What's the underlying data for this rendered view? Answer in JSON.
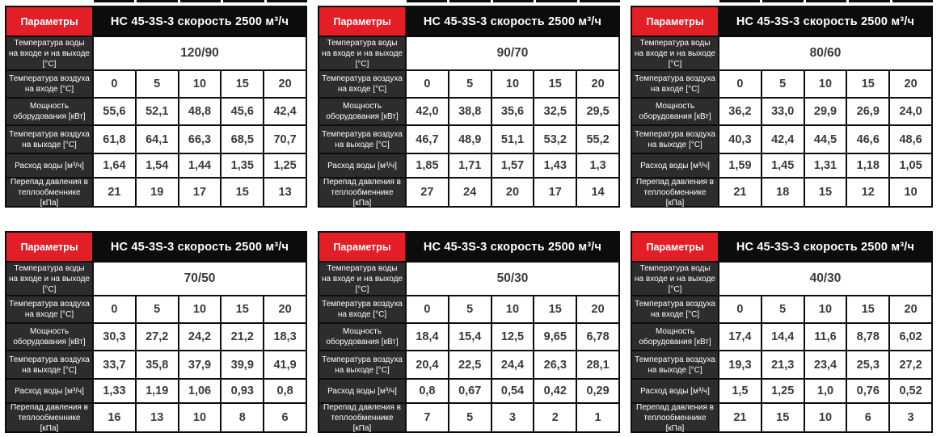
{
  "shared": {
    "params_label": "Параметры",
    "title": "НС 45-3S-3 скорость 2500 м³/ч",
    "row_labels": {
      "water_temp": "Температура воды на входе и на выходе [°C]",
      "air_in": "Температура воздуха на входе [°C]",
      "power": "Мощность оборудования [кВт]",
      "air_out": "Температура воздуха на выходе [°C]",
      "flow": "Расход воды [м³/ч]",
      "pressure": "Перепад давления в теплообменнике [кПа]"
    },
    "air_inlet_temps": [
      "0",
      "5",
      "10",
      "15",
      "20"
    ],
    "colors": {
      "accent_red": "#e31e26",
      "header_black": "#0d0c0c",
      "label_dark": "#2e2c2d",
      "value_text": "#3a3a3a"
    }
  },
  "tables": [
    {
      "water_temp": "120/90",
      "power": [
        "55,6",
        "52,1",
        "48,8",
        "45,6",
        "42,4"
      ],
      "air_out": [
        "61,8",
        "64,1",
        "66,3",
        "68,5",
        "70,7"
      ],
      "flow": [
        "1,64",
        "1,54",
        "1,44",
        "1,35",
        "1,25"
      ],
      "pressure": [
        "21",
        "19",
        "17",
        "15",
        "13"
      ]
    },
    {
      "water_temp": "90/70",
      "power": [
        "42,0",
        "38,8",
        "35,6",
        "32,5",
        "29,5"
      ],
      "air_out": [
        "46,7",
        "48,9",
        "51,1",
        "53,2",
        "55,2"
      ],
      "flow": [
        "1,85",
        "1,71",
        "1,57",
        "1,43",
        "1,3"
      ],
      "pressure": [
        "27",
        "24",
        "20",
        "17",
        "14"
      ]
    },
    {
      "water_temp": "80/60",
      "power": [
        "36,2",
        "33,0",
        "29,9",
        "26,9",
        "24,0"
      ],
      "air_out": [
        "40,3",
        "42,4",
        "44,5",
        "46,6",
        "48,6"
      ],
      "flow": [
        "1,59",
        "1,45",
        "1,31",
        "1,18",
        "1,05"
      ],
      "pressure": [
        "21",
        "18",
        "15",
        "12",
        "10"
      ]
    },
    {
      "water_temp": "70/50",
      "power": [
        "30,3",
        "27,2",
        "24,2",
        "21,2",
        "18,3"
      ],
      "air_out": [
        "33,7",
        "35,8",
        "37,9",
        "39,9",
        "41,9"
      ],
      "flow": [
        "1,33",
        "1,19",
        "1,06",
        "0,93",
        "0,8"
      ],
      "pressure": [
        "16",
        "13",
        "10",
        "8",
        "6"
      ]
    },
    {
      "water_temp": "50/30",
      "power": [
        "18,4",
        "15,4",
        "12,5",
        "9,65",
        "6,78"
      ],
      "air_out": [
        "20,4",
        "22,5",
        "24,4",
        "26,3",
        "28,1"
      ],
      "flow": [
        "0,8",
        "0,67",
        "0,54",
        "0,42",
        "0,29"
      ],
      "pressure": [
        "7",
        "5",
        "3",
        "2",
        "1"
      ]
    },
    {
      "water_temp": "40/30",
      "power": [
        "17,4",
        "14,4",
        "11,6",
        "8,78",
        "6,02"
      ],
      "air_out": [
        "19,3",
        "21,3",
        "23,4",
        "25,3",
        "27,2"
      ],
      "flow": [
        "1,5",
        "1,25",
        "1,0",
        "0,76",
        "0,52"
      ],
      "pressure": [
        "21",
        "15",
        "10",
        "6",
        "3"
      ]
    }
  ]
}
